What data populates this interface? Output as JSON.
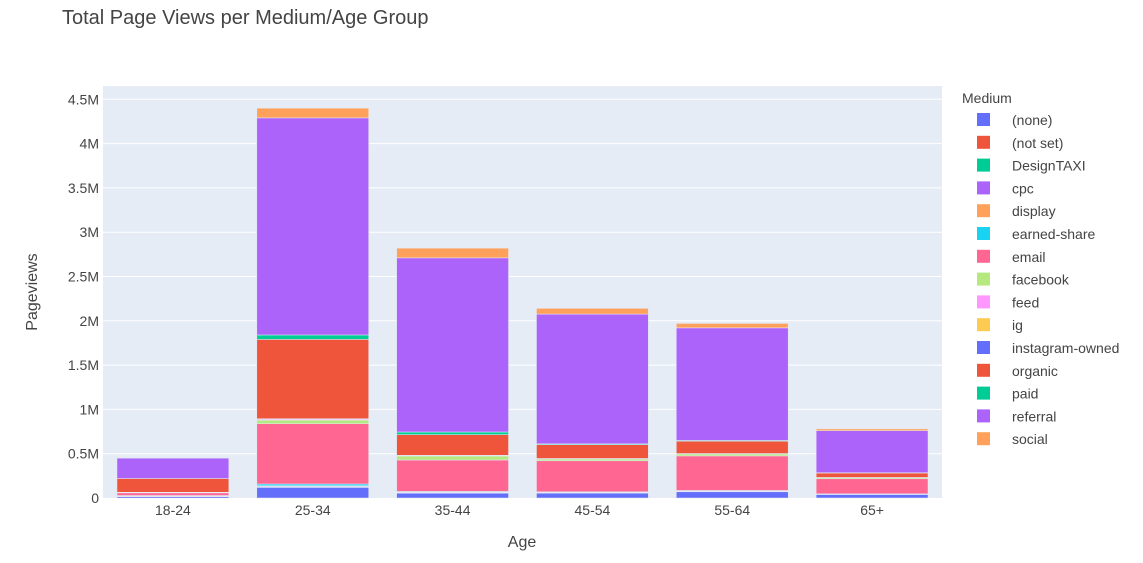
{
  "chart_data": {
    "type": "bar",
    "stacked": true,
    "title": "Total Page Views per Medium/Age Group",
    "xlabel": "Age",
    "ylabel": "Pageviews",
    "ylim": [
      0,
      4650000
    ],
    "yticks": [
      0,
      500000,
      1000000,
      1500000,
      2000000,
      2500000,
      3000000,
      3500000,
      4000000,
      4500000
    ],
    "ytick_labels": [
      "0",
      "0.5M",
      "1M",
      "1.5M",
      "2M",
      "2.5M",
      "3M",
      "3.5M",
      "4M",
      "4.5M"
    ],
    "categories": [
      "18-24",
      "25-34",
      "35-44",
      "45-54",
      "55-64",
      "65+"
    ],
    "grid": true,
    "legend": {
      "title": "Medium",
      "placement": "right"
    },
    "series": [
      {
        "name": "(none)",
        "color": "#636efa",
        "values": [
          15000,
          120000,
          55000,
          55000,
          70000,
          40000
        ]
      },
      {
        "name": "(not set)",
        "color": "#EF553B",
        "values": [
          3000,
          4000,
          3000,
          2000,
          2000,
          1000
        ]
      },
      {
        "name": "DesignTAXI",
        "color": "#00cc96",
        "values": [
          0,
          2000,
          1000,
          1000,
          1000,
          0
        ]
      },
      {
        "name": "cpc",
        "color": "#ab63fa",
        "values": [
          5000,
          8000,
          5000,
          4000,
          4000,
          2000
        ]
      },
      {
        "name": "display",
        "color": "#FFA15A",
        "values": [
          2000,
          4000,
          3000,
          2000,
          2000,
          1000
        ]
      },
      {
        "name": "earned-share",
        "color": "#19d3f3",
        "values": [
          3000,
          20000,
          7000,
          6000,
          6000,
          3000
        ]
      },
      {
        "name": "email",
        "color": "#FF6692",
        "values": [
          30000,
          680000,
          355000,
          350000,
          390000,
          170000
        ]
      },
      {
        "name": "facebook",
        "color": "#B6E880",
        "values": [
          5000,
          40000,
          45000,
          20000,
          22000,
          13000
        ]
      },
      {
        "name": "feed",
        "color": "#FF97FF",
        "values": [
          2000,
          10000,
          5000,
          3000,
          3000,
          2000
        ]
      },
      {
        "name": "ig",
        "color": "#FECB52",
        "values": [
          0,
          5000,
          2000,
          2000,
          1000,
          0
        ]
      },
      {
        "name": "instagram-owned",
        "color": "#636efa",
        "values": [
          0,
          2000,
          1000,
          1000,
          1000,
          0
        ]
      },
      {
        "name": "organic",
        "color": "#EF553B",
        "values": [
          155000,
          895000,
          233000,
          155000,
          140000,
          50000
        ]
      },
      {
        "name": "paid",
        "color": "#00cc96",
        "values": [
          0,
          50000,
          30000,
          10000,
          8000,
          3000
        ]
      },
      {
        "name": "referral",
        "color": "#ab63fa",
        "values": [
          230000,
          2450000,
          1965000,
          1465000,
          1270000,
          475000
        ]
      },
      {
        "name": "social",
        "color": "#FFA15A",
        "values": [
          0,
          110000,
          110000,
          64000,
          50000,
          20000
        ]
      }
    ]
  }
}
